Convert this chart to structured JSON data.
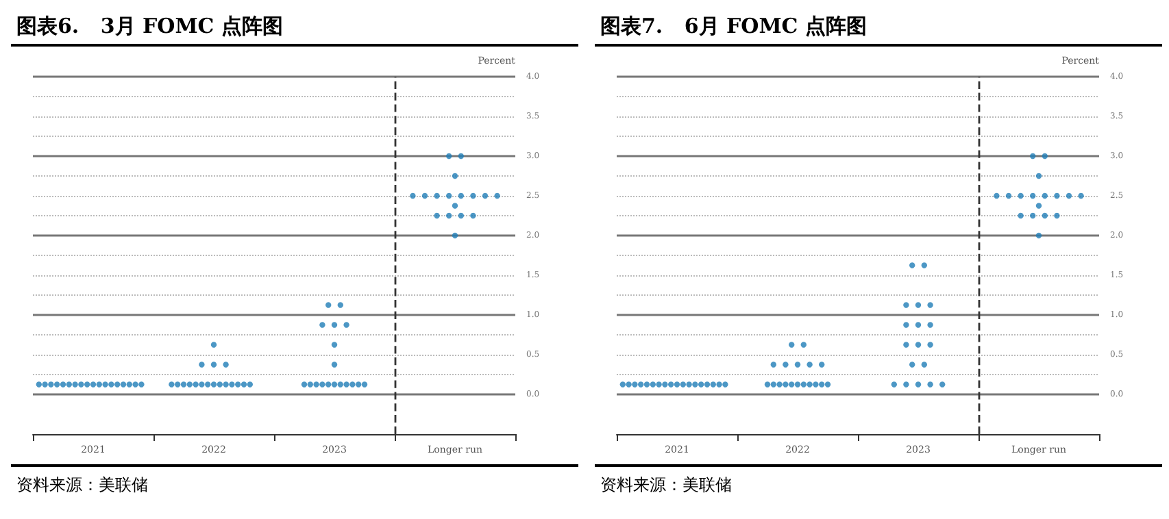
{
  "chart_data": [
    {
      "type": "scatter",
      "title": "图表6.   3月 FOMC 点阵图",
      "ylabel": "Percent",
      "annotations": [
        "资料来源：美联储"
      ],
      "series": [
        {
          "color": "#1f7db6",
          "x": [
            2020.55,
            2020.6,
            2020.65,
            2020.7,
            2020.75,
            2020.8,
            2020.85,
            2020.9,
            2020.95,
            2021.0,
            2021.05,
            2021.1,
            2021.15,
            2021.2,
            2021.25,
            2021.3,
            2021.35,
            2021.4,
            2022.0,
            2021.9,
            2022.0,
            2022.1,
            2021.65,
            2021.7,
            2021.75,
            2021.8,
            2021.85,
            2021.9,
            2021.95,
            2022.0,
            2022.05,
            2022.1,
            2022.15,
            2022.2,
            2022.25,
            2022.3,
            2022.95,
            2023.05,
            2022.9,
            2023.0,
            2023.1,
            2023.0,
            2023.0,
            2022.75,
            2022.8,
            2022.85,
            2022.9,
            2022.95,
            2023.0,
            2023.05,
            2023.1,
            2023.15,
            2023.2,
            2023.25,
            2023.95,
            2024.05,
            2024.0,
            2023.65,
            2023.75,
            2023.85,
            2023.95,
            2024.05,
            2024.15,
            2024.25,
            2024.35,
            2024.0,
            2023.85,
            2023.95,
            2024.05,
            2024.15,
            2024.0
          ],
          "values": [
            0.125,
            0.125,
            0.125,
            0.125,
            0.125,
            0.125,
            0.125,
            0.125,
            0.125,
            0.125,
            0.125,
            0.125,
            0.125,
            0.125,
            0.125,
            0.125,
            0.125,
            0.125,
            0.625,
            0.375,
            0.375,
            0.375,
            0.125,
            0.125,
            0.125,
            0.125,
            0.125,
            0.125,
            0.125,
            0.125,
            0.125,
            0.125,
            0.125,
            0.125,
            0.125,
            0.125,
            1.125,
            1.125,
            0.875,
            0.875,
            0.875,
            0.625,
            0.375,
            0.125,
            0.125,
            0.125,
            0.125,
            0.125,
            0.125,
            0.125,
            0.125,
            0.125,
            0.125,
            0.125,
            3.0,
            3.0,
            2.75,
            2.5,
            2.5,
            2.5,
            2.5,
            2.5,
            2.5,
            2.5,
            2.5,
            2.375,
            2.25,
            2.25,
            2.25,
            2.25,
            2.0
          ]
        }
      ],
      "xlim": [
        2020.5,
        2024.5
      ],
      "xticks": [
        {
          "value": 2020.5,
          "label": null
        },
        {
          "value": 2021,
          "label": "2021"
        },
        {
          "value": 2021.5,
          "label": null
        },
        {
          "value": 2022,
          "label": "2022"
        },
        {
          "value": 2022.5,
          "label": null
        },
        {
          "value": 2023,
          "label": "2023"
        },
        {
          "value": 2023.5,
          "label": null
        },
        {
          "value": 2024,
          "label": "Longer run"
        },
        {
          "value": 2024.5,
          "label": null
        }
      ],
      "ylim": [
        -0.5,
        4
      ],
      "yticks": [
        {
          "value": 0,
          "label": "0.0"
        },
        {
          "value": 0.25,
          "label": null
        },
        {
          "value": 0.5,
          "label": "0.5"
        },
        {
          "value": 0.75,
          "label": null
        },
        {
          "value": 1,
          "label": "1.0"
        },
        {
          "value": 1.25,
          "label": null
        },
        {
          "value": 1.5,
          "label": "1.5"
        },
        {
          "value": 1.75,
          "label": null
        },
        {
          "value": 2,
          "label": "2.0"
        },
        {
          "value": 2.25,
          "label": null
        },
        {
          "value": 2.5,
          "label": "2.5"
        },
        {
          "value": 2.75,
          "label": null
        },
        {
          "value": 3,
          "label": "3.0"
        },
        {
          "value": 3.25,
          "label": null
        },
        {
          "value": 3.5,
          "label": "3.5"
        },
        {
          "value": 3.75,
          "label": null
        },
        {
          "value": 4,
          "label": "4.0"
        }
      ],
      "grid": "y",
      "marker": "circle",
      "ref_lines": [
        {
          "axis": "x",
          "value": 2023.5,
          "line_style": "dashed",
          "color": "#333333"
        }
      ]
    },
    {
      "type": "scatter",
      "title": "图表7.   6月 FOMC 点阵图",
      "ylabel": "Percent",
      "annotations": [
        "资料来源：美联储"
      ],
      "series": [
        {
          "color": "#1f7db6",
          "x": [
            2020.55,
            2020.6,
            2020.65,
            2020.7,
            2020.75,
            2020.8,
            2020.85,
            2020.9,
            2020.95,
            2021.0,
            2021.05,
            2021.1,
            2021.15,
            2021.2,
            2021.25,
            2021.3,
            2021.35,
            2021.4,
            2021.95,
            2022.05,
            2021.8,
            2021.9,
            2022.0,
            2022.1,
            2022.2,
            2021.75,
            2021.8,
            2021.85,
            2021.9,
            2021.95,
            2022.0,
            2022.05,
            2022.1,
            2022.15,
            2022.2,
            2022.25,
            2022.95,
            2023.05,
            2022.9,
            2023.0,
            2023.1,
            2022.9,
            2023.0,
            2023.1,
            2022.9,
            2023.0,
            2023.1,
            2022.95,
            2023.05,
            2022.8,
            2022.9,
            2023.0,
            2023.1,
            2023.2,
            2023.95,
            2024.05,
            2024.0,
            2023.65,
            2023.75,
            2023.85,
            2023.95,
            2024.05,
            2024.15,
            2024.25,
            2024.35,
            2024.0,
            2023.85,
            2023.95,
            2024.05,
            2024.15,
            2024.0
          ],
          "values": [
            0.125,
            0.125,
            0.125,
            0.125,
            0.125,
            0.125,
            0.125,
            0.125,
            0.125,
            0.125,
            0.125,
            0.125,
            0.125,
            0.125,
            0.125,
            0.125,
            0.125,
            0.125,
            0.625,
            0.625,
            0.375,
            0.375,
            0.375,
            0.375,
            0.375,
            0.125,
            0.125,
            0.125,
            0.125,
            0.125,
            0.125,
            0.125,
            0.125,
            0.125,
            0.125,
            0.125,
            1.625,
            1.625,
            1.125,
            1.125,
            1.125,
            0.875,
            0.875,
            0.875,
            0.625,
            0.625,
            0.625,
            0.375,
            0.375,
            0.125,
            0.125,
            0.125,
            0.125,
            0.125,
            3.0,
            3.0,
            2.75,
            2.5,
            2.5,
            2.5,
            2.5,
            2.5,
            2.5,
            2.5,
            2.5,
            2.375,
            2.25,
            2.25,
            2.25,
            2.25,
            2.0
          ]
        }
      ],
      "xlim": [
        2020.5,
        2024.5
      ],
      "xticks": [
        {
          "value": 2020.5,
          "label": null
        },
        {
          "value": 2021,
          "label": "2021"
        },
        {
          "value": 2021.5,
          "label": null
        },
        {
          "value": 2022,
          "label": "2022"
        },
        {
          "value": 2022.5,
          "label": null
        },
        {
          "value": 2023,
          "label": "2023"
        },
        {
          "value": 2023.5,
          "label": null
        },
        {
          "value": 2024,
          "label": "Longer run"
        },
        {
          "value": 2024.5,
          "label": null
        }
      ],
      "ylim": [
        -0.5,
        4
      ],
      "yticks": [
        {
          "value": 0,
          "label": "0.0"
        },
        {
          "value": 0.25,
          "label": null
        },
        {
          "value": 0.5,
          "label": "0.5"
        },
        {
          "value": 0.75,
          "label": null
        },
        {
          "value": 1,
          "label": "1.0"
        },
        {
          "value": 1.25,
          "label": null
        },
        {
          "value": 1.5,
          "label": "1.5"
        },
        {
          "value": 1.75,
          "label": null
        },
        {
          "value": 2,
          "label": "2.0"
        },
        {
          "value": 2.25,
          "label": null
        },
        {
          "value": 2.5,
          "label": "2.5"
        },
        {
          "value": 2.75,
          "label": null
        },
        {
          "value": 3,
          "label": "3.0"
        },
        {
          "value": 3.25,
          "label": null
        },
        {
          "value": 3.5,
          "label": "3.5"
        },
        {
          "value": 3.75,
          "label": null
        },
        {
          "value": 4,
          "label": "4.0"
        }
      ],
      "grid": "y",
      "marker": "circle",
      "ref_lines": [
        {
          "axis": "x",
          "value": 2023.5,
          "line_style": "dashed",
          "color": "#333333"
        }
      ]
    }
  ]
}
